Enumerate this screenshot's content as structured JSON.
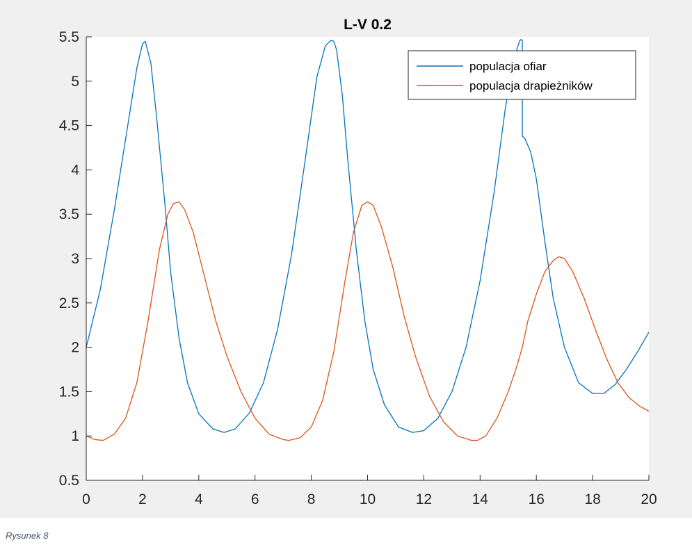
{
  "caption": "Rysunek 8",
  "colors": {
    "prey": "#0072bd",
    "predator": "#d95319",
    "axes": "#262626",
    "figure_bg": "#f0f0f0",
    "plot_bg": "#ffffff"
  },
  "chart_data": {
    "type": "line",
    "title": "L-V 0.2",
    "xlabel": "",
    "ylabel": "",
    "xlim": [
      0,
      20
    ],
    "ylim": [
      0.5,
      5.5
    ],
    "xticks": [
      "0",
      "2",
      "4",
      "6",
      "8",
      "10",
      "12",
      "14",
      "16",
      "18",
      "20"
    ],
    "yticks": [
      "0.5",
      "1",
      "1.5",
      "2",
      "2.5",
      "3",
      "3.5",
      "4",
      "4.5",
      "5",
      "5.5"
    ],
    "grid": false,
    "legend_position": "top-right",
    "series": [
      {
        "name": "populacja ofiar",
        "color": "#0072bd",
        "x": [
          0,
          0.5,
          1.0,
          1.5,
          1.8,
          2.0,
          2.1,
          2.3,
          2.5,
          2.8,
          3.0,
          3.3,
          3.6,
          4.0,
          4.5,
          4.9,
          5.3,
          5.8,
          6.3,
          6.8,
          7.3,
          7.8,
          8.2,
          8.5,
          8.7,
          8.8,
          8.9,
          9.1,
          9.3,
          9.6,
          9.9,
          10.2,
          10.6,
          11.1,
          11.6,
          12.0,
          12.5,
          13.0,
          13.5,
          14.0,
          14.5,
          14.9,
          15.2,
          15.4,
          15.45,
          15.5,
          15.5,
          15.6,
          15.8,
          16.0,
          16.3,
          16.6,
          17.0,
          17.5,
          18.0,
          18.4,
          18.8,
          19.2,
          19.6,
          20.0
        ],
        "y": [
          2.0,
          2.65,
          3.55,
          4.55,
          5.15,
          5.42,
          5.45,
          5.2,
          4.6,
          3.6,
          2.85,
          2.1,
          1.6,
          1.25,
          1.08,
          1.04,
          1.08,
          1.26,
          1.6,
          2.2,
          3.05,
          4.15,
          5.05,
          5.4,
          5.46,
          5.45,
          5.35,
          4.85,
          4.1,
          3.1,
          2.3,
          1.75,
          1.35,
          1.1,
          1.04,
          1.06,
          1.2,
          1.5,
          2.0,
          2.75,
          3.75,
          4.7,
          5.25,
          5.45,
          5.47,
          5.46,
          4.38,
          4.35,
          4.2,
          3.9,
          3.2,
          2.55,
          2.0,
          1.6,
          1.48,
          1.48,
          1.58,
          1.75,
          1.95,
          2.17
        ]
      },
      {
        "name": "populacja drapieżników",
        "color": "#d95319",
        "x": [
          0,
          0.3,
          0.6,
          1.0,
          1.4,
          1.8,
          2.2,
          2.6,
          2.9,
          3.1,
          3.3,
          3.5,
          3.8,
          4.2,
          4.6,
          5.0,
          5.5,
          6.0,
          6.5,
          7.0,
          7.2,
          7.6,
          8.0,
          8.4,
          8.8,
          9.2,
          9.5,
          9.8,
          10.0,
          10.2,
          10.5,
          10.9,
          11.3,
          11.7,
          12.2,
          12.7,
          13.2,
          13.7,
          13.9,
          14.2,
          14.6,
          15.0,
          15.3,
          15.5,
          15.7,
          16.0,
          16.3,
          16.6,
          16.8,
          17.0,
          17.3,
          17.7,
          18.1,
          18.5,
          18.9,
          19.3,
          19.7,
          20.0
        ],
        "y": [
          1.0,
          0.96,
          0.95,
          1.02,
          1.2,
          1.6,
          2.3,
          3.1,
          3.5,
          3.62,
          3.64,
          3.55,
          3.3,
          2.8,
          2.3,
          1.9,
          1.5,
          1.2,
          1.02,
          0.96,
          0.95,
          0.98,
          1.1,
          1.4,
          1.95,
          2.75,
          3.3,
          3.6,
          3.64,
          3.6,
          3.35,
          2.9,
          2.35,
          1.9,
          1.45,
          1.16,
          1.0,
          0.95,
          0.95,
          1.0,
          1.2,
          1.5,
          1.78,
          2.0,
          2.3,
          2.6,
          2.85,
          2.98,
          3.02,
          3.0,
          2.85,
          2.55,
          2.2,
          1.87,
          1.6,
          1.43,
          1.33,
          1.28
        ]
      }
    ]
  }
}
